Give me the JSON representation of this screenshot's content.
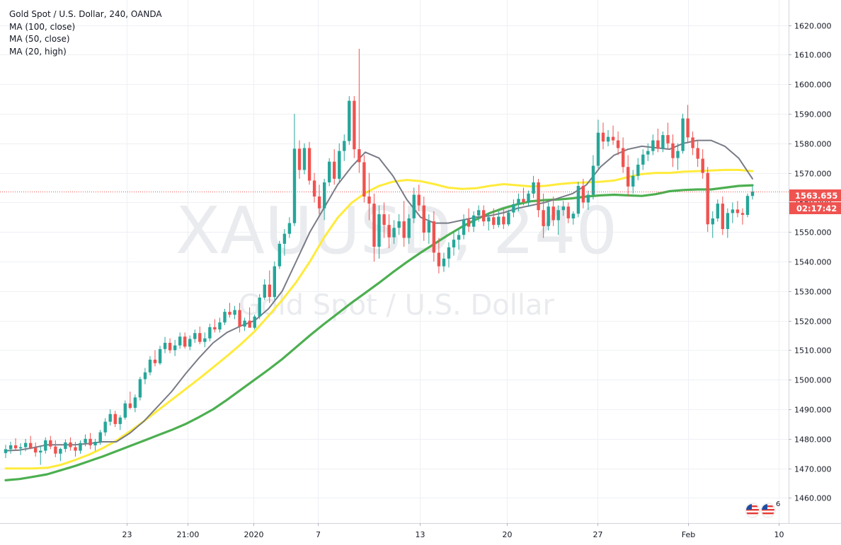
{
  "header": {
    "title": "Gold Spot / U.S. Dollar, 240, OANDA",
    "indicators": [
      "MA (100, close)",
      "MA (50, close)",
      "MA (20, high)"
    ]
  },
  "watermark": {
    "symbol": "XAUUSD, 240",
    "description": "Gold Spot / U.S. Dollar"
  },
  "price_marker": {
    "price_label": "1563.655",
    "countdown_label": "02:17:42"
  },
  "event_badges": {
    "count": "6"
  },
  "colors": {
    "up_candle": "#26a69a",
    "down_candle": "#ef5350",
    "ma100": "#4caf50",
    "ma50": "#ffeb3b",
    "ma20": "#787b86",
    "price_line": "#ef5350",
    "grid": "#eef0f4"
  },
  "chart_data": {
    "type": "candlestick",
    "timeframe": "240",
    "symbol": "XAUUSD",
    "y_axis": {
      "ticks": [
        "1460.000",
        "1470.000",
        "1480.000",
        "1490.000",
        "1500.000",
        "1510.000",
        "1520.000",
        "1530.000",
        "1540.000",
        "1550.000",
        "1560.000",
        "1570.000",
        "1580.000",
        "1590.000",
        "1600.000",
        "1610.000",
        "1620.000"
      ],
      "range": [
        1451.5,
        1628.5
      ]
    },
    "x_axis": {
      "ticks": [
        "23",
        "21:00",
        "2020",
        "7",
        "13",
        "20",
        "27",
        "Feb",
        "10"
      ]
    },
    "grid": true,
    "last_price": 1563.655,
    "candles": [
      [
        1475.2,
        1478.0,
        1473.5,
        1476.5
      ],
      [
        1476.5,
        1479.0,
        1475.0,
        1477.8
      ],
      [
        1477.8,
        1480.2,
        1476.0,
        1476.8
      ],
      [
        1476.8,
        1478.5,
        1474.5,
        1477.2
      ],
      [
        1477.2,
        1480.0,
        1475.8,
        1478.6
      ],
      [
        1478.6,
        1481.0,
        1476.5,
        1477.0
      ],
      [
        1477.0,
        1478.8,
        1474.0,
        1475.4
      ],
      [
        1475.4,
        1477.5,
        1471.2,
        1476.0
      ],
      [
        1476.0,
        1480.5,
        1475.0,
        1479.5
      ],
      [
        1479.5,
        1481.0,
        1476.5,
        1477.4
      ],
      [
        1477.4,
        1479.5,
        1473.8,
        1475.0
      ],
      [
        1475.0,
        1477.0,
        1472.5,
        1476.6
      ],
      [
        1476.6,
        1479.8,
        1475.5,
        1478.8
      ],
      [
        1478.8,
        1480.5,
        1476.0,
        1477.2
      ],
      [
        1477.2,
        1479.0,
        1474.0,
        1476.0
      ],
      [
        1476.0,
        1479.5,
        1475.0,
        1478.6
      ],
      [
        1478.6,
        1481.5,
        1477.5,
        1480.0
      ],
      [
        1480.0,
        1482.0,
        1476.5,
        1477.8
      ],
      [
        1477.8,
        1480.0,
        1476.0,
        1479.0
      ],
      [
        1479.0,
        1483.0,
        1478.0,
        1482.2
      ],
      [
        1482.2,
        1487.0,
        1481.0,
        1485.8
      ],
      [
        1485.8,
        1490.0,
        1484.5,
        1488.4
      ],
      [
        1488.4,
        1489.5,
        1484.0,
        1485.0
      ],
      [
        1485.0,
        1488.0,
        1483.0,
        1487.2
      ],
      [
        1487.2,
        1493.0,
        1486.5,
        1492.0
      ],
      [
        1492.0,
        1496.0,
        1490.0,
        1490.5
      ],
      [
        1490.5,
        1495.0,
        1489.0,
        1494.0
      ],
      [
        1494.0,
        1501.0,
        1493.0,
        1500.2
      ],
      [
        1500.2,
        1504.0,
        1498.5,
        1502.5
      ],
      [
        1502.5,
        1508.0,
        1501.5,
        1506.8
      ],
      [
        1506.8,
        1510.0,
        1504.5,
        1505.6
      ],
      [
        1505.6,
        1511.5,
        1505.0,
        1510.4
      ],
      [
        1510.4,
        1514.5,
        1509.0,
        1512.5
      ],
      [
        1512.5,
        1514.0,
        1509.0,
        1510.0
      ],
      [
        1510.0,
        1513.5,
        1508.0,
        1511.6
      ],
      [
        1511.6,
        1516.0,
        1510.5,
        1514.6
      ],
      [
        1514.6,
        1516.0,
        1510.5,
        1511.2
      ],
      [
        1511.2,
        1515.0,
        1510.0,
        1513.8
      ],
      [
        1513.8,
        1517.0,
        1512.5,
        1515.8
      ],
      [
        1515.8,
        1518.0,
        1512.0,
        1512.8
      ],
      [
        1512.8,
        1516.0,
        1511.0,
        1514.0
      ],
      [
        1514.0,
        1519.0,
        1513.0,
        1517.8
      ],
      [
        1517.8,
        1520.5,
        1516.0,
        1517.0
      ],
      [
        1517.0,
        1521.0,
        1516.0,
        1519.4
      ],
      [
        1519.4,
        1524.0,
        1518.5,
        1523.0
      ],
      [
        1523.0,
        1526.0,
        1521.0,
        1522.0
      ],
      [
        1522.0,
        1525.0,
        1520.5,
        1523.6
      ],
      [
        1523.6,
        1526.0,
        1516.0,
        1518.0
      ],
      [
        1518.0,
        1521.0,
        1516.5,
        1520.0
      ],
      [
        1520.0,
        1524.5,
        1518.0,
        1517.6
      ],
      [
        1517.6,
        1522.0,
        1517.0,
        1521.4
      ],
      [
        1521.4,
        1529.0,
        1520.5,
        1527.8
      ],
      [
        1527.8,
        1534.0,
        1527.0,
        1532.2
      ],
      [
        1532.2,
        1537.0,
        1526.0,
        1528.0
      ],
      [
        1528.0,
        1540.0,
        1527.0,
        1538.4
      ],
      [
        1538.4,
        1547.0,
        1537.5,
        1546.0
      ],
      [
        1546.0,
        1551.0,
        1542.0,
        1549.4
      ],
      [
        1549.4,
        1555.0,
        1548.0,
        1553.0
      ],
      [
        1553.0,
        1590.0,
        1552.0,
        1578.2
      ],
      [
        1578.2,
        1581.0,
        1568.0,
        1571.0
      ],
      [
        1571.0,
        1580.0,
        1569.5,
        1578.4
      ],
      [
        1578.4,
        1580.5,
        1566.0,
        1567.4
      ],
      [
        1567.4,
        1570.0,
        1560.0,
        1562.0
      ],
      [
        1562.0,
        1566.0,
        1556.0,
        1558.0
      ],
      [
        1558.0,
        1568.0,
        1554.0,
        1566.8
      ],
      [
        1566.8,
        1575.0,
        1565.5,
        1573.8
      ],
      [
        1573.8,
        1578.0,
        1566.0,
        1568.0
      ],
      [
        1568.0,
        1580.0,
        1567.0,
        1577.4
      ],
      [
        1577.4,
        1583.0,
        1574.0,
        1580.8
      ],
      [
        1580.8,
        1596.0,
        1579.5,
        1594.4
      ],
      [
        1594.4,
        1596.0,
        1575.0,
        1578.0
      ],
      [
        1578.0,
        1612.0,
        1570.0,
        1573.6
      ],
      [
        1573.6,
        1576.0,
        1560.0,
        1562.0
      ],
      [
        1562.0,
        1570.0,
        1554.0,
        1559.6
      ],
      [
        1559.6,
        1563.0,
        1540.0,
        1545.0
      ],
      [
        1545.0,
        1559.0,
        1541.0,
        1556.0
      ],
      [
        1556.0,
        1560.0,
        1548.0,
        1552.4
      ],
      [
        1552.4,
        1556.0,
        1544.5,
        1548.2
      ],
      [
        1548.2,
        1554.0,
        1546.0,
        1551.4
      ],
      [
        1551.4,
        1556.0,
        1549.0,
        1553.6
      ],
      [
        1553.6,
        1560.5,
        1545.0,
        1548.0
      ],
      [
        1548.0,
        1556.0,
        1546.0,
        1554.6
      ],
      [
        1554.6,
        1565.0,
        1553.0,
        1562.6
      ],
      [
        1562.6,
        1566.0,
        1557.0,
        1559.0
      ],
      [
        1559.0,
        1562.0,
        1547.0,
        1549.8
      ],
      [
        1549.8,
        1556.0,
        1546.0,
        1553.6
      ],
      [
        1553.6,
        1557.0,
        1540.0,
        1543.0
      ],
      [
        1543.0,
        1548.0,
        1536.0,
        1538.4
      ],
      [
        1538.4,
        1543.0,
        1536.5,
        1541.0
      ],
      [
        1541.0,
        1546.5,
        1538.0,
        1544.8
      ],
      [
        1544.8,
        1550.0,
        1542.0,
        1547.4
      ],
      [
        1547.4,
        1551.0,
        1544.0,
        1549.0
      ],
      [
        1549.0,
        1556.0,
        1547.5,
        1554.2
      ],
      [
        1554.2,
        1558.0,
        1550.0,
        1551.8
      ],
      [
        1551.8,
        1557.0,
        1550.0,
        1555.6
      ],
      [
        1555.6,
        1559.0,
        1553.5,
        1557.4
      ],
      [
        1557.4,
        1559.0,
        1552.0,
        1553.6
      ],
      [
        1553.6,
        1556.5,
        1550.5,
        1555.0
      ],
      [
        1555.0,
        1558.0,
        1551.0,
        1552.4
      ],
      [
        1552.4,
        1557.0,
        1551.5,
        1555.2
      ],
      [
        1555.2,
        1558.0,
        1551.0,
        1552.6
      ],
      [
        1552.6,
        1557.5,
        1552.0,
        1556.6
      ],
      [
        1556.6,
        1561.0,
        1555.0,
        1559.4
      ],
      [
        1559.4,
        1563.0,
        1557.0,
        1561.2
      ],
      [
        1561.2,
        1565.0,
        1559.0,
        1560.0
      ],
      [
        1560.0,
        1564.0,
        1558.5,
        1563.0
      ],
      [
        1563.0,
        1569.0,
        1561.5,
        1566.8
      ],
      [
        1566.8,
        1568.0,
        1555.0,
        1557.4
      ],
      [
        1557.4,
        1563.0,
        1548.0,
        1552.0
      ],
      [
        1552.0,
        1560.0,
        1550.5,
        1558.6
      ],
      [
        1558.6,
        1562.0,
        1552.0,
        1554.0
      ],
      [
        1554.0,
        1559.0,
        1549.0,
        1557.4
      ],
      [
        1557.4,
        1560.5,
        1555.5,
        1558.6
      ],
      [
        1558.6,
        1560.0,
        1553.0,
        1554.6
      ],
      [
        1554.6,
        1557.0,
        1552.5,
        1556.2
      ],
      [
        1556.2,
        1567.0,
        1555.0,
        1565.6
      ],
      [
        1565.6,
        1568.0,
        1558.0,
        1560.0
      ],
      [
        1560.0,
        1564.0,
        1557.5,
        1562.6
      ],
      [
        1562.6,
        1576.0,
        1561.0,
        1572.4
      ],
      [
        1572.4,
        1588.0,
        1571.5,
        1583.6
      ],
      [
        1583.6,
        1587.0,
        1578.0,
        1580.6
      ],
      [
        1580.6,
        1584.5,
        1579.0,
        1582.2
      ],
      [
        1582.2,
        1586.0,
        1579.5,
        1581.0
      ],
      [
        1581.0,
        1584.0,
        1576.0,
        1578.4
      ],
      [
        1578.4,
        1582.0,
        1570.0,
        1572.0
      ],
      [
        1572.0,
        1576.0,
        1562.0,
        1565.4
      ],
      [
        1565.4,
        1571.0,
        1563.0,
        1569.0
      ],
      [
        1569.0,
        1575.0,
        1567.5,
        1572.8
      ],
      [
        1572.8,
        1578.0,
        1571.0,
        1576.2
      ],
      [
        1576.2,
        1580.0,
        1574.0,
        1577.4
      ],
      [
        1577.4,
        1583.0,
        1576.0,
        1581.0
      ],
      [
        1581.0,
        1585.0,
        1577.0,
        1578.2
      ],
      [
        1578.2,
        1584.0,
        1577.0,
        1582.8
      ],
      [
        1582.8,
        1587.0,
        1578.0,
        1580.0
      ],
      [
        1580.0,
        1583.0,
        1572.0,
        1575.0
      ],
      [
        1575.0,
        1580.0,
        1571.0,
        1577.4
      ],
      [
        1577.4,
        1590.0,
        1576.5,
        1588.4
      ],
      [
        1588.4,
        1593.0,
        1580.0,
        1582.0
      ],
      [
        1582.0,
        1584.0,
        1576.0,
        1578.4
      ],
      [
        1578.4,
        1581.0,
        1572.0,
        1574.8
      ],
      [
        1574.8,
        1578.0,
        1568.0,
        1570.0
      ],
      [
        1570.0,
        1572.0,
        1550.0,
        1552.6
      ],
      [
        1552.6,
        1557.0,
        1548.0,
        1554.6
      ],
      [
        1554.6,
        1561.0,
        1553.5,
        1559.6
      ],
      [
        1559.6,
        1562.0,
        1549.0,
        1551.0
      ],
      [
        1551.0,
        1558.0,
        1548.0,
        1556.4
      ],
      [
        1556.4,
        1560.0,
        1553.0,
        1557.6
      ],
      [
        1557.6,
        1560.5,
        1555.0,
        1556.4
      ],
      [
        1556.4,
        1558.0,
        1552.5,
        1555.8
      ],
      [
        1555.8,
        1563.0,
        1555.0,
        1562.2
      ],
      [
        1562.2,
        1566.0,
        1561.0,
        1563.7
      ]
    ],
    "series": [
      {
        "name": "MA (100, close)",
        "color": "#4caf50",
        "values": [
          1466.0,
          1466.4,
          1467.2,
          1468.0,
          1469.4,
          1470.8,
          1472.4,
          1474.0,
          1475.8,
          1477.6,
          1479.4,
          1481.2,
          1483.0,
          1485.0,
          1487.4,
          1490.0,
          1493.2,
          1496.6,
          1500.0,
          1503.4,
          1507.0,
          1511.0,
          1515.0,
          1518.8,
          1522.4,
          1526.0,
          1529.4,
          1532.8,
          1536.4,
          1539.8,
          1543.0,
          1546.0,
          1549.0,
          1551.8,
          1554.2,
          1556.4,
          1558.0,
          1559.4,
          1560.4,
          1560.8,
          1561.0,
          1561.4,
          1562.0,
          1562.4,
          1562.6,
          1562.4,
          1562.2,
          1562.8,
          1563.8,
          1564.2,
          1564.4,
          1564.4,
          1565.0,
          1565.6,
          1565.8
        ]
      },
      {
        "name": "MA (50, close)",
        "color": "#ffeb3b",
        "values": [
          1470.0,
          1470.0,
          1470.0,
          1470.2,
          1471.2,
          1472.8,
          1474.6,
          1476.8,
          1479.4,
          1482.6,
          1486.0,
          1489.6,
          1493.2,
          1496.8,
          1500.4,
          1504.2,
          1508.0,
          1512.0,
          1516.4,
          1521.6,
          1527.0,
          1533.0,
          1540.0,
          1548.0,
          1554.8,
          1559.8,
          1563.2,
          1565.6,
          1567.0,
          1567.6,
          1567.2,
          1566.2,
          1565.0,
          1564.6,
          1564.8,
          1565.6,
          1566.2,
          1565.8,
          1565.4,
          1565.6,
          1566.2,
          1566.6,
          1566.8,
          1567.0,
          1567.4,
          1568.6,
          1569.6,
          1570.0,
          1570.0,
          1570.4,
          1570.6,
          1570.8,
          1571.0,
          1571.0,
          1570.6
        ]
      },
      {
        "name": "MA (20, high)",
        "color": "#787b86",
        "values": [
          1476.0,
          1476.2,
          1477.0,
          1478.0,
          1478.0,
          1478.0,
          1478.4,
          1479.0,
          1479.0,
          1482.0,
          1486.0,
          1491.0,
          1496.0,
          1502.0,
          1507.5,
          1512.5,
          1516.0,
          1518.2,
          1520.0,
          1524.0,
          1530.0,
          1540.0,
          1550.0,
          1558.0,
          1566.0,
          1572.0,
          1577.0,
          1575.0,
          1569.0,
          1561.0,
          1555.0,
          1553.0,
          1553.0,
          1554.0,
          1555.0,
          1555.5,
          1556.5,
          1558.0,
          1559.0,
          1560.0,
          1561.5,
          1563.0,
          1566.0,
          1572.0,
          1576.0,
          1578.0,
          1579.0,
          1578.5,
          1578.0,
          1580.0,
          1581.0,
          1581.0,
          1579.0,
          1575.0,
          1568.0
        ]
      }
    ]
  }
}
